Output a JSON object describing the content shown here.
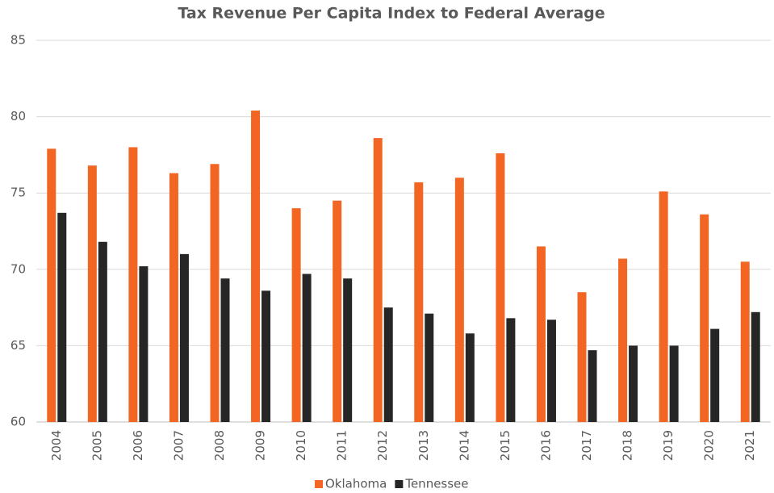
{
  "chart_data": {
    "type": "bar",
    "title": "Tax Revenue Per Capita Index to Federal Average",
    "categories": [
      "2004",
      "2005",
      "2006",
      "2007",
      "2008",
      "2009",
      "2010",
      "2011",
      "2012",
      "2013",
      "2014",
      "2015",
      "2016",
      "2017",
      "2018",
      "2019",
      "2020",
      "2021"
    ],
    "series": [
      {
        "name": "Oklahoma",
        "color": "#f26522",
        "values": [
          77.9,
          76.8,
          78.0,
          76.3,
          76.9,
          80.4,
          74.0,
          74.5,
          78.6,
          75.7,
          76.0,
          77.6,
          71.5,
          68.5,
          70.7,
          75.1,
          73.6,
          70.5
        ]
      },
      {
        "name": "Tennessee",
        "color": "#262626",
        "values": [
          73.7,
          71.8,
          70.2,
          71.0,
          69.4,
          68.6,
          69.7,
          69.4,
          67.5,
          67.1,
          65.8,
          66.8,
          66.7,
          64.7,
          65.0,
          65.0,
          66.1,
          67.2
        ]
      }
    ],
    "ylim": [
      60,
      85
    ],
    "yticks": [
      60,
      65,
      70,
      75,
      80,
      85
    ],
    "grid": true,
    "legend": "bottom"
  }
}
